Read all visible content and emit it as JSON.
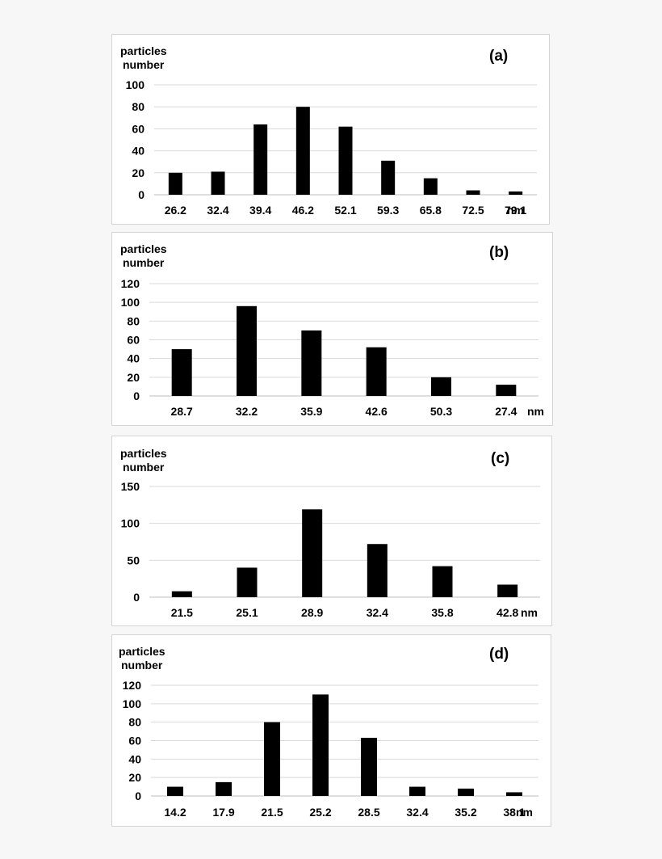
{
  "chart_data": [
    {
      "type": "bar",
      "panel_label": "(a)",
      "ylabel": [
        "particles",
        "number"
      ],
      "xunit": "nm",
      "categories": [
        "26.2",
        "32.4",
        "39.4",
        "46.2",
        "52.1",
        "59.3",
        "65.8",
        "72.5",
        "79.1"
      ],
      "values": [
        20,
        21,
        64,
        80,
        62,
        31,
        15,
        4,
        3
      ],
      "yticks": [
        0,
        20,
        40,
        60,
        80,
        100
      ],
      "ylim": [
        0,
        100
      ],
      "grid": true,
      "bar_color": "#000000"
    },
    {
      "type": "bar",
      "panel_label": "(b)",
      "ylabel": [
        "particles",
        "number"
      ],
      "xunit": "nm",
      "categories": [
        "28.7",
        "32.2",
        "35.9",
        "42.6",
        "50.3",
        "27.4"
      ],
      "values": [
        50,
        96,
        70,
        52,
        20,
        12
      ],
      "yticks": [
        0,
        20,
        40,
        60,
        80,
        100,
        120
      ],
      "ylim": [
        0,
        120
      ],
      "grid": true,
      "bar_color": "#000000"
    },
    {
      "type": "bar",
      "panel_label": "(c)",
      "ylabel": [
        "particles",
        "number"
      ],
      "xunit": "nm",
      "categories": [
        "21.5",
        "25.1",
        "28.9",
        "32.4",
        "35.8",
        "42.8"
      ],
      "values": [
        8,
        40,
        119,
        72,
        42,
        17
      ],
      "yticks": [
        0,
        50,
        100,
        150
      ],
      "ylim": [
        0,
        150
      ],
      "grid": true,
      "bar_color": "#000000"
    },
    {
      "type": "bar",
      "panel_label": "(d)",
      "ylabel": [
        "particles",
        "number"
      ],
      "xunit": "nm",
      "categories": [
        "14.2",
        "17.9",
        "21.5",
        "25.2",
        "28.5",
        "32.4",
        "35.2",
        "38.1"
      ],
      "values": [
        10,
        15,
        80,
        110,
        63,
        10,
        8,
        4
      ],
      "yticks": [
        0,
        20,
        40,
        60,
        80,
        100,
        120
      ],
      "ylim": [
        0,
        120
      ],
      "grid": true,
      "bar_color": "#000000"
    }
  ]
}
